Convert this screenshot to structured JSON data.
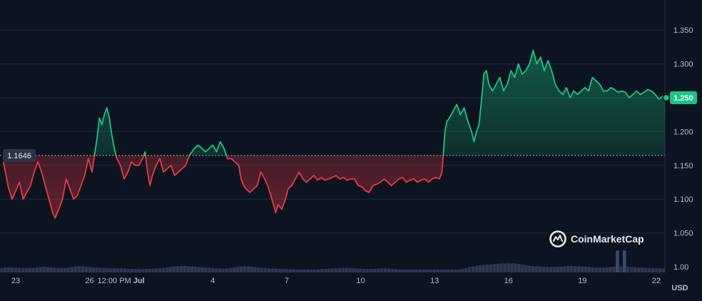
{
  "chart_data": {
    "type": "line",
    "baseline": 1.1646,
    "baseline_label": "1.1646",
    "current_value": 1.25,
    "current_label": "1.250",
    "currency_label": "USD",
    "watermark": "CoinMarketCap",
    "ylim": [
      0.99,
      1.37
    ],
    "y_ticks": [
      {
        "label": "1.350",
        "value": 1.35
      },
      {
        "label": "1.300",
        "value": 1.3
      },
      {
        "label": "1.250",
        "value": 1.25
      },
      {
        "label": "1.200",
        "value": 1.2
      },
      {
        "label": "1.150",
        "value": 1.15
      },
      {
        "label": "1.100",
        "value": 1.1
      },
      {
        "label": "1.050",
        "value": 1.05
      },
      {
        "label": "1.00",
        "value": 1.0
      }
    ],
    "x_ticks": [
      {
        "label": "23",
        "t": 0.0
      },
      {
        "label": "26",
        "t": 3.0
      },
      {
        "label": "12:00 PM",
        "t": 4.0
      },
      {
        "label": "Jul",
        "t": 5.0
      },
      {
        "label": "4",
        "t": 8.0
      },
      {
        "label": "7",
        "t": 11.0
      },
      {
        "label": "10",
        "t": 14.0
      },
      {
        "label": "13",
        "t": 17.0
      },
      {
        "label": "16",
        "t": 20.0
      },
      {
        "label": "19",
        "t": 23.0
      },
      {
        "label": "22",
        "t": 26.0
      }
    ],
    "series": [
      {
        "points": [
          [
            -0.5,
            1.155
          ],
          [
            -0.3,
            1.118
          ],
          [
            -0.15,
            1.1
          ],
          [
            0,
            1.112
          ],
          [
            0.15,
            1.125
          ],
          [
            0.3,
            1.1
          ],
          [
            0.45,
            1.11
          ],
          [
            0.6,
            1.12
          ],
          [
            0.75,
            1.14
          ],
          [
            0.9,
            1.155
          ],
          [
            1.05,
            1.14
          ],
          [
            1.2,
            1.12
          ],
          [
            1.35,
            1.1
          ],
          [
            1.5,
            1.08
          ],
          [
            1.6,
            1.072
          ],
          [
            1.75,
            1.085
          ],
          [
            1.9,
            1.1
          ],
          [
            2.05,
            1.13
          ],
          [
            2.2,
            1.115
          ],
          [
            2.35,
            1.1
          ],
          [
            2.5,
            1.105
          ],
          [
            2.65,
            1.12
          ],
          [
            2.8,
            1.135
          ],
          [
            2.95,
            1.16
          ],
          [
            3.1,
            1.14
          ],
          [
            3.2,
            1.165
          ],
          [
            3.3,
            1.19
          ],
          [
            3.4,
            1.22
          ],
          [
            3.5,
            1.21
          ],
          [
            3.6,
            1.225
          ],
          [
            3.7,
            1.235
          ],
          [
            3.8,
            1.22
          ],
          [
            3.9,
            1.195
          ],
          [
            4.0,
            1.175
          ],
          [
            4.1,
            1.16
          ],
          [
            4.25,
            1.15
          ],
          [
            4.4,
            1.13
          ],
          [
            4.55,
            1.14
          ],
          [
            4.7,
            1.155
          ],
          [
            4.85,
            1.15
          ],
          [
            5.0,
            1.15
          ],
          [
            5.15,
            1.16
          ],
          [
            5.25,
            1.17
          ],
          [
            5.35,
            1.14
          ],
          [
            5.45,
            1.12
          ],
          [
            5.55,
            1.135
          ],
          [
            5.7,
            1.15
          ],
          [
            5.85,
            1.16
          ],
          [
            6.0,
            1.14
          ],
          [
            6.15,
            1.145
          ],
          [
            6.3,
            1.15
          ],
          [
            6.45,
            1.135
          ],
          [
            6.6,
            1.14
          ],
          [
            6.75,
            1.145
          ],
          [
            6.9,
            1.15
          ],
          [
            7.05,
            1.165
          ],
          [
            7.15,
            1.17
          ],
          [
            7.25,
            1.175
          ],
          [
            7.4,
            1.18
          ],
          [
            7.55,
            1.175
          ],
          [
            7.7,
            1.17
          ],
          [
            7.85,
            1.175
          ],
          [
            8.0,
            1.18
          ],
          [
            8.15,
            1.17
          ],
          [
            8.3,
            1.185
          ],
          [
            8.45,
            1.175
          ],
          [
            8.6,
            1.16
          ],
          [
            8.75,
            1.16
          ],
          [
            8.9,
            1.155
          ],
          [
            9.05,
            1.15
          ],
          [
            9.15,
            1.13
          ],
          [
            9.25,
            1.12
          ],
          [
            9.35,
            1.115
          ],
          [
            9.5,
            1.11
          ],
          [
            9.65,
            1.115
          ],
          [
            9.8,
            1.12
          ],
          [
            9.95,
            1.14
          ],
          [
            10.1,
            1.13
          ],
          [
            10.25,
            1.118
          ],
          [
            10.4,
            1.1
          ],
          [
            10.55,
            1.08
          ],
          [
            10.65,
            1.092
          ],
          [
            10.8,
            1.085
          ],
          [
            10.95,
            1.1
          ],
          [
            11.05,
            1.115
          ],
          [
            11.2,
            1.12
          ],
          [
            11.35,
            1.13
          ],
          [
            11.5,
            1.14
          ],
          [
            11.65,
            1.13
          ],
          [
            11.8,
            1.125
          ],
          [
            11.95,
            1.13
          ],
          [
            12.1,
            1.135
          ],
          [
            12.25,
            1.128
          ],
          [
            12.4,
            1.132
          ],
          [
            12.55,
            1.128
          ],
          [
            12.7,
            1.13
          ],
          [
            12.85,
            1.132
          ],
          [
            13.0,
            1.135
          ],
          [
            13.15,
            1.13
          ],
          [
            13.3,
            1.132
          ],
          [
            13.45,
            1.128
          ],
          [
            13.6,
            1.13
          ],
          [
            13.75,
            1.13
          ],
          [
            13.9,
            1.12
          ],
          [
            14.05,
            1.118
          ],
          [
            14.2,
            1.112
          ],
          [
            14.35,
            1.11
          ],
          [
            14.5,
            1.12
          ],
          [
            14.65,
            1.122
          ],
          [
            14.8,
            1.125
          ],
          [
            14.95,
            1.13
          ],
          [
            15.1,
            1.125
          ],
          [
            15.25,
            1.12
          ],
          [
            15.4,
            1.125
          ],
          [
            15.55,
            1.13
          ],
          [
            15.7,
            1.132
          ],
          [
            15.85,
            1.125
          ],
          [
            16.0,
            1.128
          ],
          [
            16.15,
            1.13
          ],
          [
            16.3,
            1.125
          ],
          [
            16.45,
            1.128
          ],
          [
            16.6,
            1.13
          ],
          [
            16.75,
            1.125
          ],
          [
            16.9,
            1.13
          ],
          [
            17.05,
            1.132
          ],
          [
            17.2,
            1.13
          ],
          [
            17.3,
            1.14
          ],
          [
            17.35,
            1.165
          ],
          [
            17.42,
            1.2
          ],
          [
            17.5,
            1.215
          ],
          [
            17.6,
            1.22
          ],
          [
            17.75,
            1.23
          ],
          [
            17.9,
            1.24
          ],
          [
            18.05,
            1.225
          ],
          [
            18.2,
            1.235
          ],
          [
            18.35,
            1.215
          ],
          [
            18.5,
            1.2
          ],
          [
            18.6,
            1.185
          ],
          [
            18.7,
            1.2
          ],
          [
            18.8,
            1.21
          ],
          [
            18.9,
            1.245
          ],
          [
            19.0,
            1.285
          ],
          [
            19.1,
            1.29
          ],
          [
            19.2,
            1.27
          ],
          [
            19.35,
            1.26
          ],
          [
            19.5,
            1.27
          ],
          [
            19.65,
            1.28
          ],
          [
            19.8,
            1.26
          ],
          [
            19.95,
            1.27
          ],
          [
            20.1,
            1.29
          ],
          [
            20.25,
            1.28
          ],
          [
            20.4,
            1.3
          ],
          [
            20.55,
            1.285
          ],
          [
            20.7,
            1.29
          ],
          [
            20.85,
            1.3
          ],
          [
            21.0,
            1.32
          ],
          [
            21.15,
            1.3
          ],
          [
            21.3,
            1.31
          ],
          [
            21.45,
            1.29
          ],
          [
            21.6,
            1.305
          ],
          [
            21.75,
            1.29
          ],
          [
            21.9,
            1.27
          ],
          [
            22.05,
            1.26
          ],
          [
            22.2,
            1.255
          ],
          [
            22.35,
            1.265
          ],
          [
            22.5,
            1.25
          ],
          [
            22.65,
            1.26
          ],
          [
            22.8,
            1.255
          ],
          [
            22.95,
            1.26
          ],
          [
            23.1,
            1.265
          ],
          [
            23.25,
            1.26
          ],
          [
            23.4,
            1.28
          ],
          [
            23.55,
            1.275
          ],
          [
            23.7,
            1.27
          ],
          [
            23.85,
            1.26
          ],
          [
            24.0,
            1.26
          ],
          [
            24.15,
            1.265
          ],
          [
            24.3,
            1.262
          ],
          [
            24.45,
            1.258
          ],
          [
            24.6,
            1.26
          ],
          [
            24.75,
            1.258
          ],
          [
            24.9,
            1.25
          ],
          [
            25.05,
            1.255
          ],
          [
            25.2,
            1.26
          ],
          [
            25.35,
            1.255
          ],
          [
            25.5,
            1.258
          ],
          [
            25.65,
            1.262
          ],
          [
            25.8,
            1.26
          ],
          [
            25.95,
            1.255
          ],
          [
            26.1,
            1.248
          ],
          [
            26.25,
            1.252
          ],
          [
            26.4,
            1.25
          ]
        ]
      }
    ],
    "volume": {
      "note_values_relative": "",
      "bars": [
        0.45,
        0.5,
        0.52,
        0.5,
        0.48,
        0.46,
        0.45,
        0.44,
        0.45,
        0.47,
        0.5,
        0.55,
        0.58,
        0.55,
        0.5,
        0.48,
        0.46,
        0.45,
        0.46,
        0.5,
        0.55,
        0.6,
        0.62,
        0.6,
        0.58,
        0.55,
        0.5,
        0.48,
        0.46,
        0.45,
        0.44,
        0.43,
        0.42,
        0.4,
        0.4,
        0.38,
        0.36,
        0.35,
        0.34,
        0.34,
        0.34,
        0.35,
        0.36,
        0.38,
        0.4,
        0.42,
        0.45,
        0.5,
        0.55,
        0.6,
        0.62,
        0.65,
        0.66,
        0.64,
        0.6,
        0.58,
        0.55,
        0.52,
        0.5,
        0.48,
        0.45,
        0.42,
        0.4,
        0.38,
        0.4,
        0.45,
        0.5,
        0.55,
        0.6,
        0.62,
        0.6,
        0.58,
        0.55,
        0.5,
        0.48,
        0.45,
        0.42,
        0.4,
        0.38,
        0.36,
        0.35,
        0.34,
        0.33,
        0.32,
        0.3,
        0.3,
        0.3,
        0.3,
        0.3,
        0.3,
        0.32,
        0.35,
        0.36,
        0.38,
        0.4,
        0.42,
        0.44,
        0.46,
        0.45,
        0.44,
        0.42,
        0.4,
        0.38,
        0.36,
        0.35,
        0.35,
        0.36,
        0.38,
        0.4,
        0.4,
        0.38,
        0.36,
        0.34,
        0.32,
        0.3,
        0.3,
        0.29,
        0.28,
        0.28,
        0.28,
        0.28,
        0.28,
        0.28,
        0.28,
        0.28,
        0.28,
        0.28,
        0.28,
        0.28,
        0.28,
        0.3,
        0.35,
        0.45,
        0.55,
        0.62,
        0.68,
        0.72,
        0.75,
        0.78,
        0.82,
        0.85,
        0.88,
        0.9,
        0.92,
        0.95,
        0.92,
        0.9,
        0.85,
        0.78,
        0.72,
        0.68,
        0.65,
        0.62,
        0.6,
        0.58,
        0.56,
        0.55,
        0.56,
        0.58,
        0.6,
        0.62,
        0.65,
        0.66,
        0.64,
        0.62,
        0.6,
        0.58,
        0.55,
        0.52,
        0.5,
        0.5,
        0.5,
        0.52,
        0.55,
        0.58,
        2.2,
        0.6,
        2.2,
        0.58,
        0.55,
        0.52,
        0.5,
        0.48,
        0.46,
        0.45,
        0.44,
        0.43,
        0.42,
        0.4
      ]
    }
  }
}
